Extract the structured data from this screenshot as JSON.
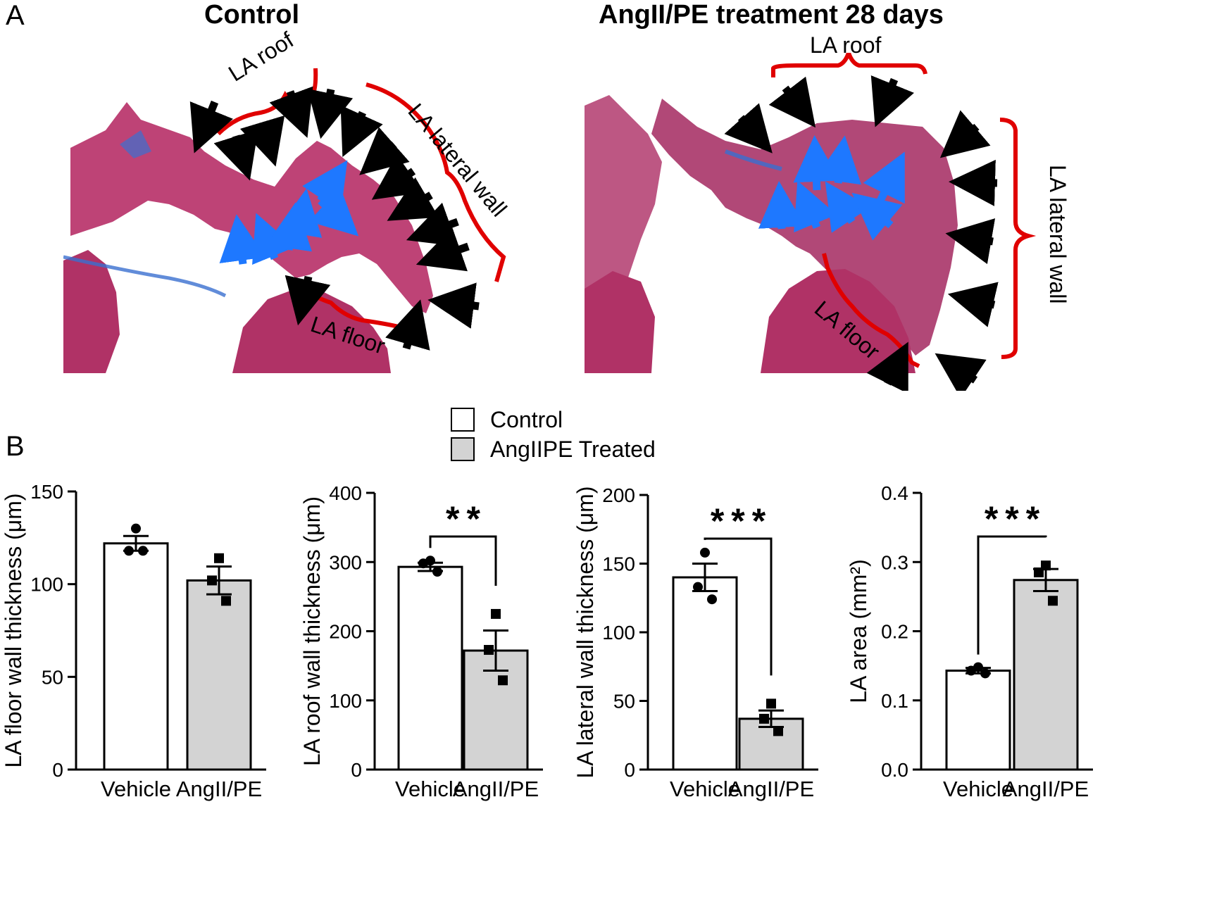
{
  "panels": {
    "a_label": "A",
    "b_label": "B"
  },
  "histology": {
    "control": {
      "title": "Control",
      "labels": {
        "roof": "LA roof",
        "lateral": "LA lateral wall",
        "floor": "LA floor"
      }
    },
    "treated": {
      "title": "AngII/PE treatment 28 days",
      "labels": {
        "roof": "LA roof",
        "lateral": "LA lateral wall",
        "floor": "LA floor"
      }
    }
  },
  "legend": {
    "items": [
      {
        "label": "Control",
        "color": "#ffffff"
      },
      {
        "label": "AngIIPE Treated",
        "color": "#d3d3d3"
      }
    ]
  },
  "colors": {
    "control_bar": "#ffffff",
    "treated_bar": "#d3d3d3",
    "tissue": "#b8336a",
    "fibrosis": "#3a6fd0",
    "bracket": "#e00000",
    "arrow_black": "#000000",
    "arrow_blue": "#1e78ff"
  },
  "chart_data": [
    {
      "type": "bar",
      "categories": [
        "Vehicle",
        "AngII/PE"
      ],
      "values": [
        122,
        102
      ],
      "sem": [
        4,
        7.5
      ],
      "points": [
        [
          130,
          118,
          118
        ],
        [
          114,
          102,
          91
        ]
      ],
      "ylabel": "LA floor wall thickness (μm)",
      "ylim": [
        0,
        150
      ],
      "yticks": [
        0,
        50,
        100,
        150
      ],
      "tick_labels": [
        "0",
        "50",
        "100",
        "150"
      ],
      "significance": ""
    },
    {
      "type": "bar",
      "categories": [
        "Vehicle",
        "AngII/PE"
      ],
      "values": [
        293,
        172
      ],
      "sem": [
        6,
        29
      ],
      "points": [
        [
          302,
          298,
          286
        ],
        [
          225,
          173,
          129
        ]
      ],
      "ylabel": "LA roof wall thickness (μm)",
      "ylim": [
        0,
        400
      ],
      "yticks": [
        0,
        100,
        200,
        300,
        400
      ],
      "tick_labels": [
        "0",
        "100",
        "200",
        "300",
        "400"
      ],
      "significance": "**"
    },
    {
      "type": "bar",
      "categories": [
        "Vehicle",
        "AngII/PE"
      ],
      "values": [
        140,
        37
      ],
      "sem": [
        10,
        6
      ],
      "points": [
        [
          158,
          133,
          124
        ],
        [
          48,
          37,
          28
        ]
      ],
      "ylabel": "LA lateral wall thickness (μm)",
      "ylim": [
        0,
        200
      ],
      "yticks": [
        0,
        50,
        100,
        150,
        200
      ],
      "tick_labels": [
        "0",
        "50",
        "100",
        "150",
        "200"
      ],
      "significance": "***"
    },
    {
      "type": "bar",
      "categories": [
        "Vehicle",
        "AngII/PE"
      ],
      "values": [
        0.143,
        0.274
      ],
      "sem": [
        0.004,
        0.016
      ],
      "points": [
        [
          0.148,
          0.143,
          0.139
        ],
        [
          0.295,
          0.285,
          0.244
        ]
      ],
      "ylabel": "LA area (mm²)",
      "ylim": [
        0,
        0.4
      ],
      "yticks": [
        0,
        0.1,
        0.2,
        0.3,
        0.4
      ],
      "tick_labels": [
        "0.0",
        "0.1",
        "0.2",
        "0.3",
        "0.4"
      ],
      "significance": "***"
    }
  ]
}
